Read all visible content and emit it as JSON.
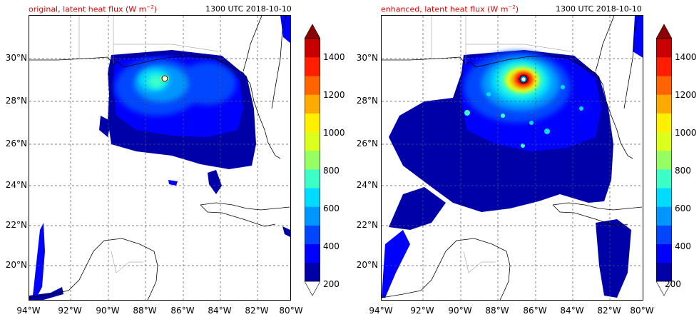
{
  "panels": [
    {
      "title_prefix": "original, latent heat flux (W m",
      "title_exp": "−2",
      "title_suffix": ")",
      "time": "1300 UTC 2018-10-10"
    },
    {
      "title_prefix": "enhanced, latent heat flux (W m",
      "title_exp": "−2",
      "title_suffix": ")",
      "time": "1300 UTC 2018-10-10"
    }
  ],
  "lat_labels": [
    "30°N",
    "28°N",
    "26°N",
    "24°N",
    "22°N",
    "20°N"
  ],
  "lon_labels": [
    "94°W",
    "92°W",
    "90°W",
    "88°W",
    "86°W",
    "84°W",
    "82°W",
    "80°W"
  ],
  "colorbar": {
    "tick_labels": [
      "1400",
      "1200",
      "1000",
      "800",
      "600",
      "400",
      "200"
    ],
    "levels": [
      200,
      300,
      400,
      500,
      600,
      700,
      800,
      900,
      1000,
      1100,
      1200,
      1300,
      1400,
      1500
    ],
    "colors": [
      "#0000a8",
      "#0000ff",
      "#0046ff",
      "#0096ff",
      "#00dcff",
      "#3cffc8",
      "#96ff64",
      "#dcff1e",
      "#fff000",
      "#ffaa00",
      "#ff6400",
      "#ff1e00",
      "#c80000"
    ],
    "over_color": "#8b0000",
    "under_color": "#ffffff"
  },
  "map_extent": {
    "lon": [
      -94,
      -80
    ],
    "lat": [
      18.2,
      32
    ]
  }
}
